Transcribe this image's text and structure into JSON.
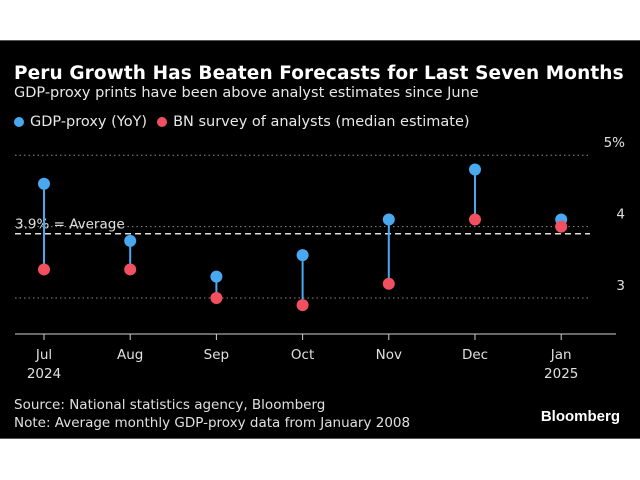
{
  "header": {
    "title": "Peru Growth Has Beaten Forecasts for Last Seven Months",
    "subtitle": "GDP-proxy prints have been above analyst estimates since June"
  },
  "legend": [
    {
      "label": "GDP-proxy (YoY)",
      "color": "#4aa8f0"
    },
    {
      "label": "BN survey of analysts (median estimate)",
      "color": "#f0505f"
    }
  ],
  "footer": {
    "source": "Source: National statistics agency, Bloomberg",
    "note": "Note: Average monthly GDP-proxy data from January 2008",
    "brand": "Bloomberg"
  },
  "chart_data": {
    "type": "scatter",
    "subtype": "dumbbell",
    "title": "Peru Growth Has Beaten Forecasts for Last Seven Months",
    "subtitle": "GDP-proxy prints have been above analyst estimates since June",
    "categories": [
      "Jul",
      "Aug",
      "Sep",
      "Oct",
      "Nov",
      "Dec",
      "Jan"
    ],
    "category_sublabels": [
      "2024",
      "",
      "",
      "",
      "",
      "",
      "2025"
    ],
    "series": [
      {
        "name": "GDP-proxy (YoY)",
        "color": "#4aa8f0",
        "values": [
          4.6,
          3.8,
          3.3,
          3.6,
          4.1,
          4.8,
          4.1
        ]
      },
      {
        "name": "BN survey of analysts (median estimate)",
        "color": "#f0505f",
        "values": [
          3.4,
          3.4,
          3.0,
          2.9,
          3.2,
          4.1,
          4.0
        ]
      }
    ],
    "reference_line": {
      "value": 3.9,
      "label": "3.9% = Average",
      "style": "dashed"
    },
    "yticks": [
      3,
      4,
      5
    ],
    "ytick_labels": [
      "3",
      "4",
      "5%"
    ],
    "ylim": [
      2.6,
      5.3
    ],
    "xlabel": "",
    "ylabel": "",
    "grid": true,
    "axis_side": "right",
    "legend_position": "top-left"
  }
}
